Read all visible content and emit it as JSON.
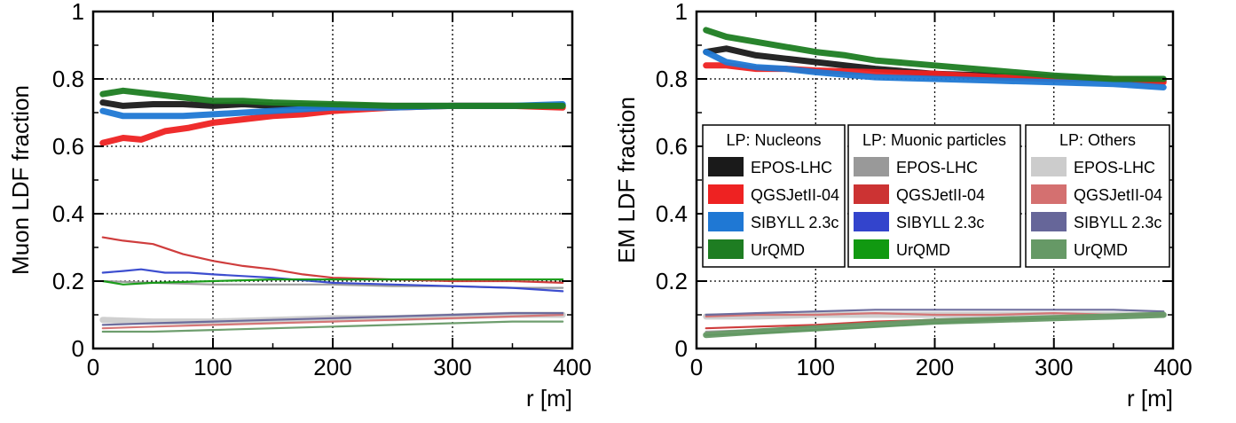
{
  "chart_data": [
    {
      "type": "line",
      "xlabel": "r [m]",
      "ylabel": "Muon LDF fraction",
      "xlim": [
        0,
        400
      ],
      "ylim": [
        0,
        1
      ],
      "xticks": [
        0,
        100,
        200,
        300,
        400
      ],
      "yticks": [
        0,
        0.2,
        0.4,
        0.6,
        0.8,
        1
      ],
      "xtick_labels": [
        "0",
        "100",
        "200",
        "300",
        "400"
      ],
      "ytick_labels": [
        "0",
        "0.2",
        "0.4",
        "0.6",
        "0.8",
        "1"
      ],
      "grid": "dotted",
      "series": [
        {
          "name": "EPOS-LHC",
          "group": "LP: Nucleons",
          "color": "#1a1a1a",
          "band": true,
          "x": [
            8,
            25,
            50,
            75,
            100,
            125,
            150,
            175,
            200,
            250,
            300,
            350,
            392
          ],
          "y": [
            0.73,
            0.72,
            0.725,
            0.725,
            0.72,
            0.725,
            0.72,
            0.72,
            0.72,
            0.72,
            0.72,
            0.72,
            0.72
          ]
        },
        {
          "name": "QGSJetII-04",
          "group": "LP: Nucleons",
          "color": "#ee2222",
          "band": true,
          "x": [
            8,
            25,
            40,
            60,
            80,
            100,
            125,
            150,
            175,
            200,
            250,
            300,
            350,
            392
          ],
          "y": [
            0.61,
            0.625,
            0.62,
            0.645,
            0.655,
            0.67,
            0.68,
            0.69,
            0.695,
            0.705,
            0.715,
            0.72,
            0.72,
            0.715
          ]
        },
        {
          "name": "SIBYLL 2.3c",
          "group": "LP: Nucleons",
          "color": "#1f78d4",
          "band": true,
          "x": [
            8,
            25,
            50,
            75,
            100,
            150,
            200,
            250,
            300,
            350,
            392
          ],
          "y": [
            0.705,
            0.69,
            0.69,
            0.69,
            0.695,
            0.705,
            0.715,
            0.715,
            0.72,
            0.72,
            0.725
          ]
        },
        {
          "name": "UrQMD",
          "group": "LP: Nucleons",
          "color": "#1e7d22",
          "band": true,
          "x": [
            8,
            25,
            50,
            75,
            100,
            125,
            150,
            200,
            250,
            300,
            350,
            392
          ],
          "y": [
            0.755,
            0.765,
            0.755,
            0.745,
            0.735,
            0.735,
            0.73,
            0.725,
            0.72,
            0.72,
            0.72,
            0.72
          ]
        },
        {
          "name": "EPOS-LHC",
          "group": "LP: Muonic particles",
          "color": "#999999",
          "band": false,
          "x": [
            8,
            50,
            100,
            150,
            200,
            250,
            300,
            350,
            392
          ],
          "y": [
            0.2,
            0.195,
            0.19,
            0.19,
            0.19,
            0.185,
            0.185,
            0.18,
            0.18
          ]
        },
        {
          "name": "QGSJetII-04",
          "group": "LP: Muonic particles",
          "color": "#cc3333",
          "band": false,
          "x": [
            8,
            25,
            50,
            75,
            100,
            125,
            150,
            175,
            200,
            250,
            300,
            350,
            392
          ],
          "y": [
            0.33,
            0.32,
            0.31,
            0.28,
            0.26,
            0.245,
            0.235,
            0.22,
            0.21,
            0.205,
            0.2,
            0.2,
            0.195
          ]
        },
        {
          "name": "SIBYLL 2.3c",
          "group": "LP: Muonic particles",
          "color": "#3344cc",
          "band": false,
          "x": [
            8,
            25,
            40,
            60,
            80,
            100,
            150,
            200,
            250,
            300,
            350,
            392
          ],
          "y": [
            0.225,
            0.23,
            0.235,
            0.225,
            0.225,
            0.22,
            0.21,
            0.195,
            0.19,
            0.185,
            0.18,
            0.17
          ]
        },
        {
          "name": "UrQMD",
          "group": "LP: Muonic particles",
          "color": "#119911",
          "band": false,
          "x": [
            8,
            25,
            50,
            100,
            150,
            200,
            250,
            300,
            350,
            392
          ],
          "y": [
            0.2,
            0.19,
            0.195,
            0.2,
            0.205,
            0.205,
            0.205,
            0.205,
            0.205,
            0.205
          ]
        },
        {
          "name": "EPOS-LHC",
          "group": "LP: Others",
          "color": "#cccccc",
          "band": true,
          "x": [
            8,
            50,
            100,
            150,
            200,
            250,
            300,
            350,
            392
          ],
          "y": [
            0.085,
            0.08,
            0.08,
            0.085,
            0.09,
            0.09,
            0.095,
            0.1,
            0.1
          ]
        },
        {
          "name": "QGSJetII-04",
          "group": "LP: Others",
          "color": "#d47070",
          "band": false,
          "x": [
            8,
            50,
            100,
            150,
            200,
            250,
            300,
            350,
            392
          ],
          "y": [
            0.06,
            0.065,
            0.07,
            0.075,
            0.08,
            0.085,
            0.09,
            0.095,
            0.1
          ]
        },
        {
          "name": "SIBYLL 2.3c",
          "group": "LP: Others",
          "color": "#666699",
          "band": false,
          "x": [
            8,
            50,
            100,
            150,
            200,
            250,
            300,
            350,
            392
          ],
          "y": [
            0.07,
            0.075,
            0.08,
            0.085,
            0.09,
            0.095,
            0.1,
            0.105,
            0.105
          ]
        },
        {
          "name": "UrQMD",
          "group": "LP: Others",
          "color": "#669966",
          "band": false,
          "x": [
            8,
            50,
            100,
            150,
            200,
            250,
            300,
            350,
            392
          ],
          "y": [
            0.05,
            0.05,
            0.055,
            0.06,
            0.065,
            0.07,
            0.075,
            0.08,
            0.08
          ]
        }
      ]
    },
    {
      "type": "line",
      "xlabel": "r [m]",
      "ylabel": "EM LDF fraction",
      "xlim": [
        0,
        400
      ],
      "ylim": [
        0,
        1
      ],
      "xticks": [
        0,
        100,
        200,
        300,
        400
      ],
      "yticks": [
        0,
        0.2,
        0.4,
        0.6,
        0.8,
        1
      ],
      "xtick_labels": [
        "0",
        "100",
        "200",
        "300",
        "400"
      ],
      "ytick_labels": [
        "0",
        "0.2",
        "0.4",
        "0.6",
        "0.8",
        "1"
      ],
      "grid": "dotted",
      "series": [
        {
          "name": "EPOS-LHC",
          "group": "LP: Nucleons",
          "color": "#1a1a1a",
          "band": true,
          "x": [
            8,
            25,
            50,
            75,
            100,
            125,
            150,
            200,
            250,
            300,
            350,
            392
          ],
          "y": [
            0.88,
            0.89,
            0.87,
            0.86,
            0.85,
            0.84,
            0.83,
            0.815,
            0.81,
            0.805,
            0.8,
            0.795
          ]
        },
        {
          "name": "QGSJetII-04",
          "group": "LP: Nucleons",
          "color": "#ee2222",
          "band": true,
          "x": [
            8,
            25,
            50,
            75,
            100,
            150,
            200,
            250,
            300,
            350,
            392
          ],
          "y": [
            0.84,
            0.84,
            0.83,
            0.83,
            0.825,
            0.82,
            0.815,
            0.805,
            0.8,
            0.8,
            0.79
          ]
        },
        {
          "name": "SIBYLL 2.3c",
          "group": "LP: Nucleons",
          "color": "#1f78d4",
          "band": true,
          "x": [
            8,
            25,
            50,
            75,
            100,
            150,
            200,
            250,
            300,
            350,
            392
          ],
          "y": [
            0.88,
            0.85,
            0.835,
            0.83,
            0.82,
            0.805,
            0.8,
            0.795,
            0.79,
            0.785,
            0.775
          ]
        },
        {
          "name": "UrQMD",
          "group": "LP: Nucleons",
          "color": "#1e7d22",
          "band": true,
          "x": [
            8,
            25,
            50,
            75,
            100,
            125,
            150,
            200,
            250,
            300,
            350,
            392
          ],
          "y": [
            0.945,
            0.925,
            0.91,
            0.895,
            0.88,
            0.87,
            0.855,
            0.84,
            0.825,
            0.81,
            0.8,
            0.8
          ]
        },
        {
          "name": "EPOS-LHC",
          "group": "LP: Muonic particles",
          "color": "#999999",
          "band": false,
          "x": [
            8,
            50,
            100,
            150,
            200,
            250,
            300,
            350,
            392
          ],
          "y": [
            0.05,
            0.055,
            0.065,
            0.075,
            0.08,
            0.085,
            0.09,
            0.095,
            0.1
          ]
        },
        {
          "name": "QGSJetII-04",
          "group": "LP: Muonic particles",
          "color": "#cc3333",
          "band": false,
          "x": [
            8,
            50,
            100,
            150,
            200,
            250,
            300,
            350,
            392
          ],
          "y": [
            0.06,
            0.065,
            0.07,
            0.08,
            0.085,
            0.09,
            0.095,
            0.1,
            0.105
          ]
        },
        {
          "name": "SIBYLL 2.3c",
          "group": "LP: Muonic particles",
          "color": "#3344cc",
          "band": false,
          "x": [
            8,
            50,
            100,
            150,
            200,
            250,
            300,
            350,
            392
          ],
          "y": [
            0.04,
            0.045,
            0.055,
            0.065,
            0.075,
            0.085,
            0.09,
            0.1,
            0.1
          ]
        },
        {
          "name": "UrQMD",
          "group": "LP: Muonic particles",
          "color": "#119911",
          "band": false,
          "x": [
            8,
            50,
            100,
            150,
            200,
            250,
            300,
            350,
            392
          ],
          "y": [
            0.04,
            0.045,
            0.055,
            0.065,
            0.075,
            0.085,
            0.09,
            0.1,
            0.1
          ]
        },
        {
          "name": "EPOS-LHC",
          "group": "LP: Others",
          "color": "#cccccc",
          "band": true,
          "x": [
            8,
            50,
            100,
            150,
            200,
            250,
            300,
            350,
            392
          ],
          "y": [
            0.095,
            0.095,
            0.1,
            0.1,
            0.1,
            0.1,
            0.1,
            0.1,
            0.1
          ]
        },
        {
          "name": "QGSJetII-04",
          "group": "LP: Others",
          "color": "#d47070",
          "band": false,
          "x": [
            8,
            50,
            100,
            150,
            200,
            250,
            300,
            350,
            392
          ],
          "y": [
            0.095,
            0.1,
            0.1,
            0.105,
            0.1,
            0.1,
            0.105,
            0.1,
            0.1
          ]
        },
        {
          "name": "SIBYLL 2.3c",
          "group": "LP: Others",
          "color": "#666699",
          "band": false,
          "x": [
            8,
            50,
            100,
            150,
            200,
            250,
            300,
            350,
            392
          ],
          "y": [
            0.1,
            0.105,
            0.11,
            0.115,
            0.115,
            0.115,
            0.115,
            0.115,
            0.11
          ]
        },
        {
          "name": "UrQMD",
          "group": "LP: Others",
          "color": "#669966",
          "band": true,
          "x": [
            8,
            50,
            100,
            150,
            200,
            250,
            300,
            350,
            392
          ],
          "y": [
            0.04,
            0.05,
            0.06,
            0.07,
            0.08,
            0.085,
            0.09,
            0.095,
            0.1
          ]
        }
      ]
    }
  ],
  "legend": {
    "placement": "right panel, center",
    "groups": [
      {
        "title": "LP: Nucleons",
        "entries": [
          {
            "label": "EPOS-LHC",
            "color": "#1a1a1a"
          },
          {
            "label": "QGSJetII-04",
            "color": "#ee2222"
          },
          {
            "label": "SIBYLL 2.3c",
            "color": "#1f78d4"
          },
          {
            "label": "UrQMD",
            "color": "#1e7d22"
          }
        ]
      },
      {
        "title": "LP: Muonic particles",
        "entries": [
          {
            "label": "EPOS-LHC",
            "color": "#999999"
          },
          {
            "label": "QGSJetII-04",
            "color": "#cc3333"
          },
          {
            "label": "SIBYLL 2.3c",
            "color": "#3344cc"
          },
          {
            "label": "UrQMD",
            "color": "#119911"
          }
        ]
      },
      {
        "title": "LP: Others",
        "entries": [
          {
            "label": "EPOS-LHC",
            "color": "#cccccc"
          },
          {
            "label": "QGSJetII-04",
            "color": "#d47070"
          },
          {
            "label": "SIBYLL 2.3c",
            "color": "#666699"
          },
          {
            "label": "UrQMD",
            "color": "#669966"
          }
        ]
      }
    ]
  }
}
